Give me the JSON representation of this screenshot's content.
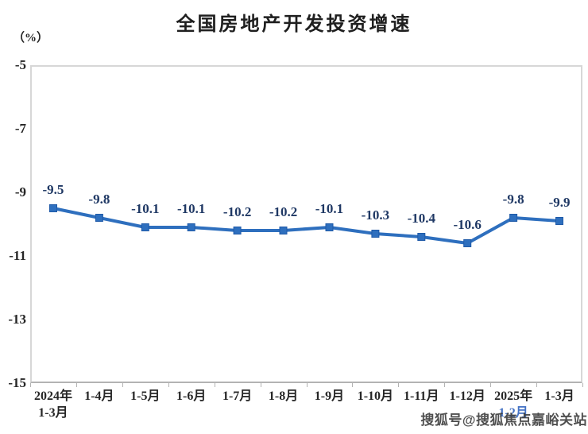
{
  "chart": {
    "title": "全国房地产开发投资增速",
    "unit": "（%）"
  },
  "chart_data": {
    "type": "line",
    "title": "全国房地产开发投资增速",
    "xlabel": "",
    "ylabel": "（%）",
    "categories": [
      "2024年\n1-3月",
      "1-4月",
      "1-5月",
      "1-6月",
      "1-7月",
      "1-8月",
      "1-9月",
      "1-10月",
      "1-11月",
      "1-12月",
      "2025年\n1-2月",
      "1-3月"
    ],
    "values": [
      -9.5,
      -9.8,
      -10.1,
      -10.1,
      -10.2,
      -10.2,
      -10.1,
      -10.3,
      -10.4,
      -10.6,
      -9.8,
      -9.9
    ],
    "ylim": [
      -15,
      -5
    ],
    "yticks": [
      -5,
      -7,
      -9,
      -11,
      -13,
      -15
    ],
    "grid": false,
    "legend": false,
    "marker": "square",
    "data_labels_shown": true,
    "colors": {
      "line": "#2e6fbe",
      "marker_fill": "#2e6fbe",
      "marker_stroke": "#1f5aa8",
      "data_label": "#1f3864",
      "axis_text": "#262626",
      "plot_border": "#d7d7d7",
      "axis_line": "#b3b3b3",
      "title": "#1f1f1f",
      "watermark": "#3d3d3d",
      "obscured_label": "#4472c4"
    },
    "obscured_x_label": {
      "index": 10,
      "line": 1,
      "color": "#4472c4"
    }
  },
  "watermark": {
    "text": "搜狐号@搜狐焦点嘉峪关站"
  }
}
